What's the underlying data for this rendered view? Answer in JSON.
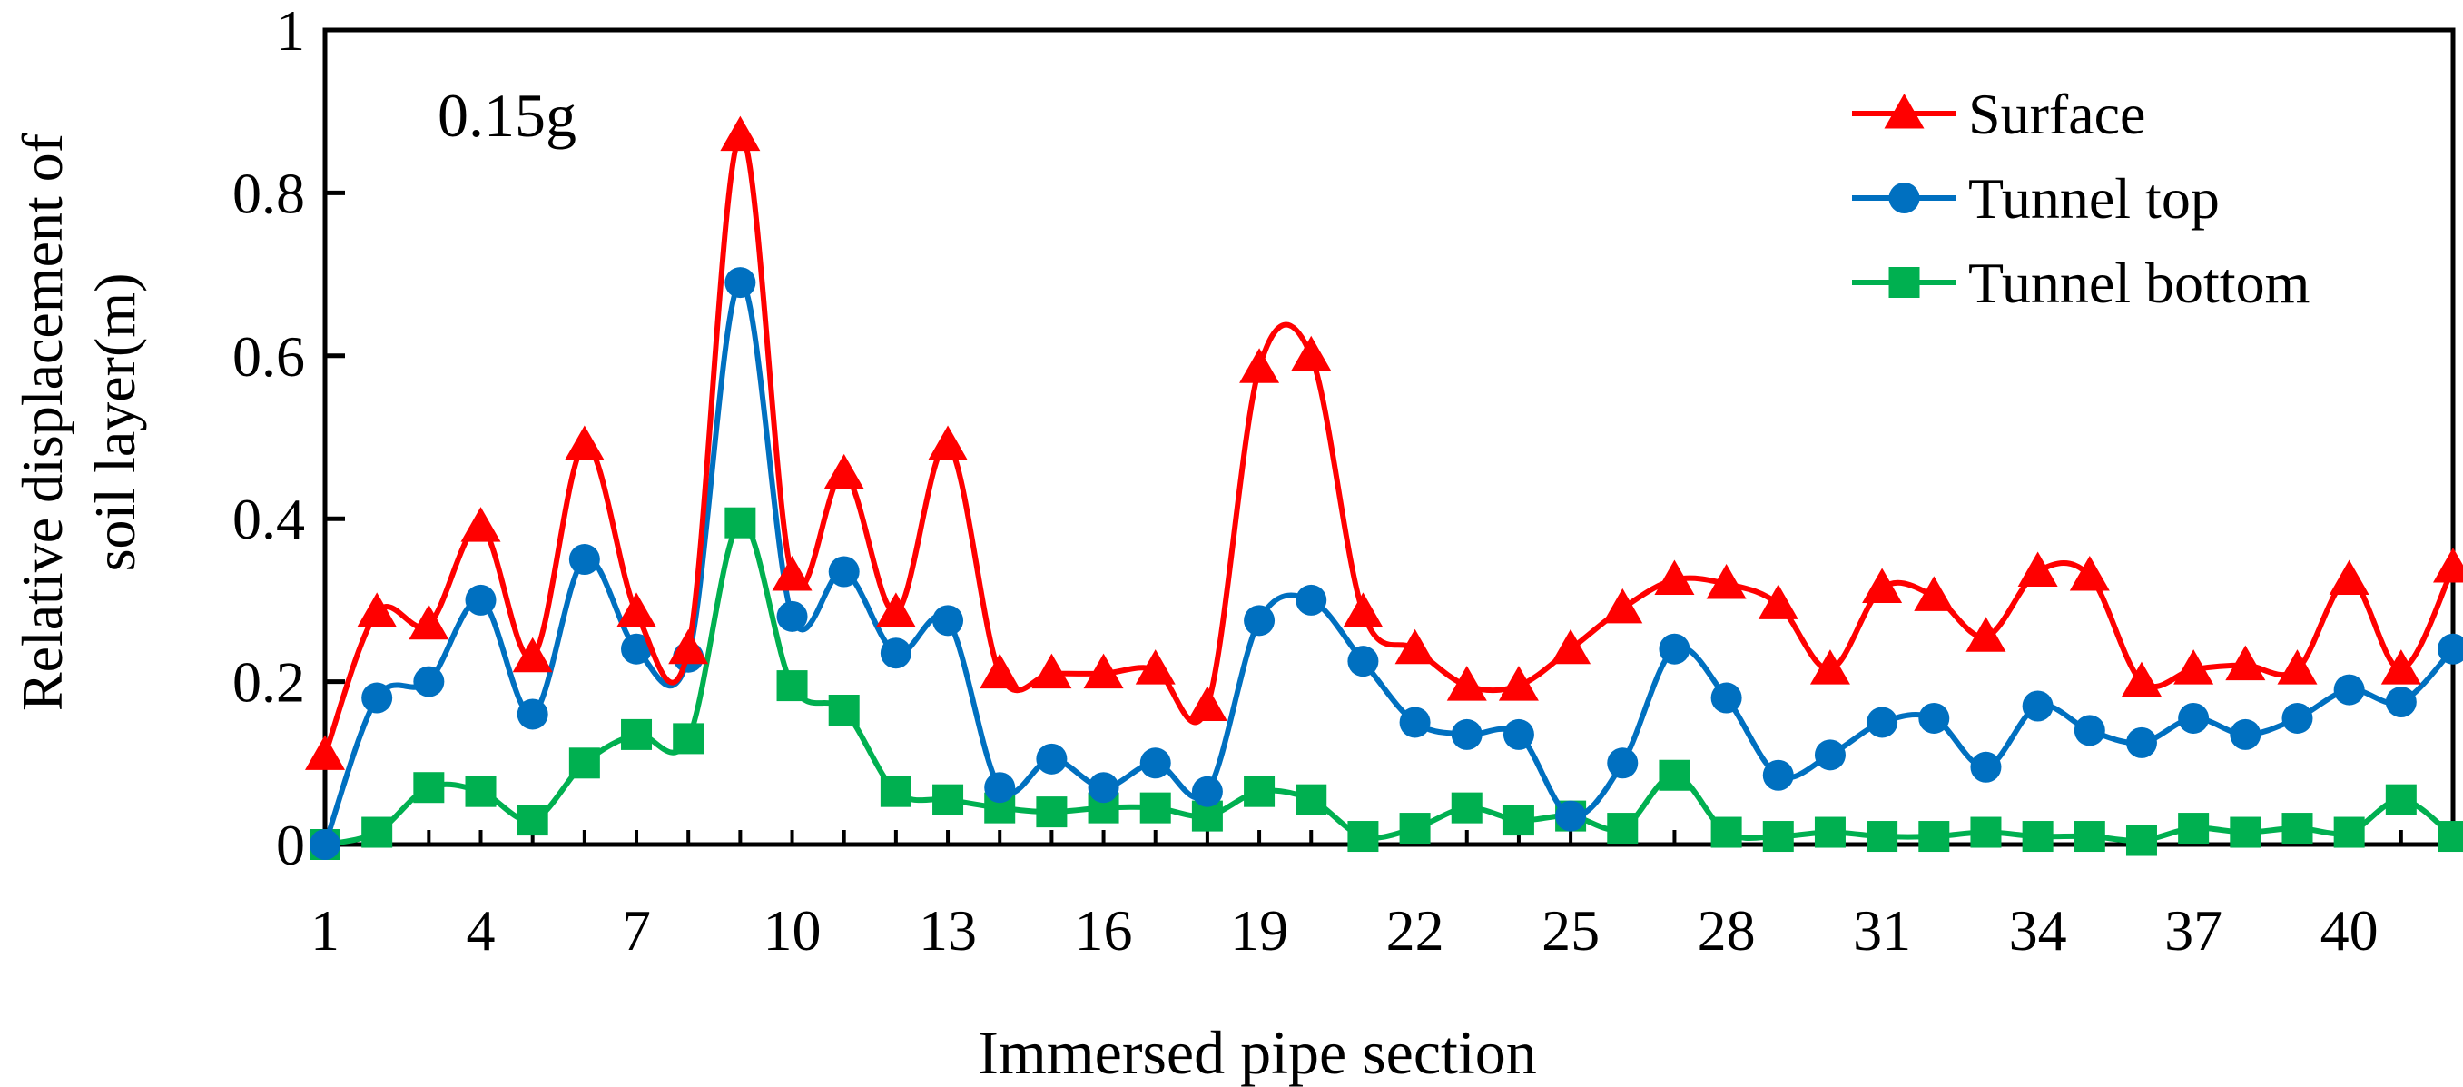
{
  "chart_data": {
    "type": "line",
    "annotation": "0.15g",
    "xlabel": "Immersed pipe section",
    "ylabel_line1": "Relative displacement of",
    "ylabel_line2": "soil layer(m)",
    "xlim": [
      1,
      42
    ],
    "ylim": [
      0,
      1
    ],
    "xticks": [
      1,
      4,
      7,
      10,
      13,
      16,
      19,
      22,
      25,
      28,
      31,
      34,
      37,
      40
    ],
    "xtick_labels": [
      "1",
      "4",
      "7",
      "10",
      "13",
      "16",
      "19",
      "22",
      "25",
      "28",
      "31",
      "34",
      "37",
      "40"
    ],
    "yticks": [
      0,
      0.2,
      0.4,
      0.6,
      0.8,
      1
    ],
    "ytick_labels": [
      "0",
      "0.2",
      "0.4",
      "0.6",
      "0.8",
      "1"
    ],
    "legend_position": "top-right",
    "x": [
      1,
      2,
      3,
      4,
      5,
      6,
      7,
      8,
      9,
      10,
      11,
      12,
      13,
      14,
      15,
      16,
      17,
      18,
      19,
      20,
      21,
      22,
      23,
      24,
      25,
      26,
      27,
      28,
      29,
      30,
      31,
      32,
      33,
      34,
      35,
      36,
      37,
      38,
      39,
      40,
      41,
      42
    ],
    "series": [
      {
        "name": "Surface",
        "color": "#ff0000",
        "marker": "triangle",
        "values": [
          0.11,
          0.285,
          0.27,
          0.39,
          0.23,
          0.49,
          0.285,
          0.24,
          0.87,
          0.33,
          0.455,
          0.285,
          0.49,
          0.21,
          0.21,
          0.21,
          0.215,
          0.17,
          0.585,
          0.6,
          0.285,
          0.24,
          0.195,
          0.195,
          0.24,
          0.29,
          0.325,
          0.32,
          0.295,
          0.215,
          0.315,
          0.305,
          0.255,
          0.335,
          0.33,
          0.2,
          0.215,
          0.22,
          0.215,
          0.325,
          0.215,
          0.34
        ]
      },
      {
        "name": "Tunnel top",
        "color": "#0070c0",
        "marker": "circle",
        "values": [
          0.0,
          0.18,
          0.2,
          0.3,
          0.16,
          0.35,
          0.24,
          0.23,
          0.69,
          0.28,
          0.335,
          0.235,
          0.275,
          0.07,
          0.105,
          0.07,
          0.1,
          0.065,
          0.275,
          0.3,
          0.225,
          0.15,
          0.135,
          0.135,
          0.035,
          0.1,
          0.24,
          0.18,
          0.085,
          0.11,
          0.15,
          0.155,
          0.095,
          0.17,
          0.14,
          0.125,
          0.155,
          0.135,
          0.155,
          0.19,
          0.175,
          0.24
        ]
      },
      {
        "name": "Tunnel bottom",
        "color": "#00b050",
        "marker": "square",
        "values": [
          0.0,
          0.015,
          0.07,
          0.065,
          0.03,
          0.1,
          0.135,
          0.13,
          0.395,
          0.195,
          0.165,
          0.065,
          0.055,
          0.045,
          0.04,
          0.045,
          0.045,
          0.035,
          0.065,
          0.055,
          0.01,
          0.02,
          0.045,
          0.03,
          0.035,
          0.02,
          0.085,
          0.015,
          0.01,
          0.015,
          0.01,
          0.01,
          0.015,
          0.01,
          0.01,
          0.005,
          0.02,
          0.015,
          0.02,
          0.015,
          0.055,
          0.01
        ]
      }
    ]
  }
}
